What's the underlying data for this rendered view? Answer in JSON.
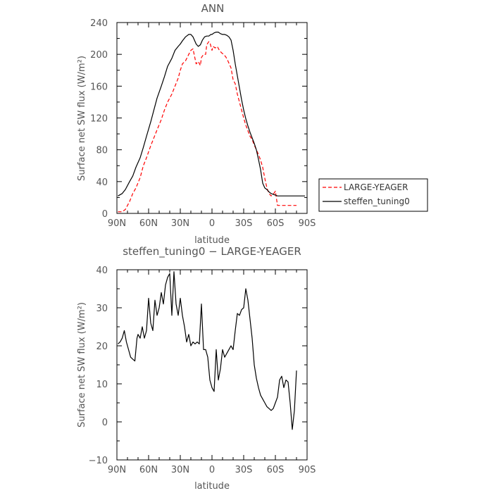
{
  "chart_data": [
    {
      "type": "line",
      "title": "ANN",
      "xlabel": "latitude",
      "ylabel": "Surface net SW flux (W/m²)",
      "xlim": [
        90,
        -90
      ],
      "ylim": [
        0,
        240
      ],
      "xticks": [
        90,
        60,
        30,
        0,
        -30,
        -60,
        -90
      ],
      "xtick_labels": [
        "90N",
        "60N",
        "30N",
        "0",
        "30S",
        "60S",
        "90S"
      ],
      "yticks": [
        0,
        40,
        80,
        120,
        160,
        200,
        240
      ],
      "ytick_labels": [
        "0",
        "40",
        "80",
        "120",
        "160",
        "200",
        "240"
      ],
      "legend_position": "right",
      "series": [
        {
          "name": "LARGE-YEAGER",
          "color": "#ff0000",
          "style": "dashed",
          "x": [
            89,
            85,
            82,
            78,
            75,
            72,
            68,
            65,
            62,
            58,
            55,
            52,
            48,
            45,
            42,
            38,
            35,
            32,
            30,
            28,
            25,
            22,
            20,
            18,
            15,
            13,
            11,
            10,
            8,
            6,
            5,
            3,
            2,
            0,
            -1,
            -3,
            -5,
            -7,
            -9,
            -11,
            -13,
            -15,
            -18,
            -20,
            -22,
            -24,
            -26,
            -28,
            -30,
            -32,
            -34,
            -36,
            -38,
            -40,
            -42,
            -44,
            -46,
            -48,
            -50,
            -52,
            -54,
            -56,
            -58,
            -60,
            -62,
            -64,
            -66,
            -68,
            -70,
            -72,
            -74,
            -76,
            -78,
            -80
          ],
          "y": [
            2,
            2,
            5,
            15,
            25,
            32,
            45,
            60,
            70,
            85,
            95,
            105,
            118,
            130,
            140,
            150,
            160,
            170,
            180,
            188,
            192,
            200,
            205,
            207,
            188,
            191,
            186,
            196,
            200,
            200,
            212,
            216,
            215,
            205,
            210,
            208,
            210,
            205,
            202,
            200,
            197,
            192,
            183,
            168,
            163,
            150,
            140,
            130,
            120,
            111,
            104,
            97,
            93,
            86,
            80,
            74,
            67,
            58,
            44,
            32,
            25,
            22,
            24,
            28,
            10,
            10,
            10,
            10,
            10,
            10,
            10,
            10,
            10,
            10
          ]
        },
        {
          "name": "steffen_tuning0",
          "color": "#000000",
          "style": "solid",
          "x": [
            89,
            85,
            82,
            78,
            75,
            72,
            68,
            65,
            62,
            58,
            55,
            52,
            48,
            45,
            42,
            38,
            35,
            32,
            30,
            28,
            25,
            22,
            20,
            18,
            15,
            13,
            11,
            9,
            7,
            5,
            3,
            1,
            0,
            -2,
            -4,
            -6,
            -8,
            -10,
            -12,
            -14,
            -16,
            -18,
            -20,
            -22,
            -24,
            -26,
            -28,
            -30,
            -32,
            -34,
            -36,
            -38,
            -40,
            -42,
            -44,
            -46,
            -48,
            -50,
            -52,
            -54,
            -56,
            -58,
            -60,
            -62,
            -64,
            -66,
            -68,
            -70,
            -72,
            -74,
            -76,
            -78,
            -80,
            -82,
            -85,
            -88
          ],
          "y": [
            22,
            25,
            30,
            40,
            47,
            58,
            70,
            83,
            97,
            115,
            130,
            145,
            160,
            172,
            185,
            195,
            205,
            210,
            213,
            217,
            222,
            225,
            225,
            222,
            213,
            210,
            212,
            218,
            222,
            223,
            223,
            225,
            225,
            227,
            228,
            228,
            226,
            225,
            225,
            224,
            222,
            218,
            205,
            188,
            173,
            158,
            143,
            130,
            119,
            110,
            102,
            95,
            88,
            80,
            68,
            55,
            38,
            32,
            30,
            27,
            25,
            24,
            23,
            22,
            22,
            22,
            22,
            22,
            22,
            22,
            22,
            22,
            22,
            22,
            22,
            22
          ]
        }
      ]
    },
    {
      "type": "line",
      "title": "steffen_tuning0 − LARGE-YEAGER",
      "xlabel": "latitude",
      "ylabel": "Surface net SW flux (W/m²)",
      "xlim": [
        90,
        -90
      ],
      "ylim": [
        -10,
        40
      ],
      "xticks": [
        90,
        60,
        30,
        0,
        -30,
        -60,
        -90
      ],
      "xtick_labels": [
        "90N",
        "60N",
        "30N",
        "0",
        "30S",
        "60S",
        "90S"
      ],
      "yticks": [
        -10,
        0,
        10,
        20,
        30,
        40
      ],
      "ytick_labels": [
        "−10",
        "0",
        "10",
        "20",
        "30",
        "40"
      ],
      "series": [
        {
          "color": "#000000",
          "style": "solid",
          "x": [
            89,
            87,
            85,
            83,
            81,
            79,
            77,
            75,
            73,
            71,
            70,
            68,
            66,
            64,
            62,
            60,
            58,
            56,
            54,
            52,
            50,
            48,
            46,
            44,
            42,
            40,
            38,
            36,
            34,
            32,
            30,
            28,
            26,
            24,
            22,
            20,
            18,
            16,
            14,
            12,
            10,
            8,
            6,
            4,
            2,
            0,
            -2,
            -4,
            -6,
            -8,
            -10,
            -12,
            -14,
            -16,
            -18,
            -20,
            -22,
            -24,
            -26,
            -28,
            -30,
            -32,
            -34,
            -36,
            -38,
            -40,
            -42,
            -44,
            -46,
            -48,
            -50,
            -52,
            -54,
            -56,
            -58,
            -60,
            -62,
            -64,
            -66,
            -68,
            -70,
            -72,
            -74,
            -76,
            -78,
            -80
          ],
          "y": [
            20.5,
            21,
            22,
            24,
            21,
            19,
            17,
            16.5,
            16,
            22,
            23,
            22,
            25,
            22,
            24,
            32.5,
            26,
            24,
            32,
            28,
            30,
            34,
            31,
            36,
            38,
            39,
            28,
            39.5,
            31,
            28,
            32.5,
            28,
            25,
            21,
            23,
            20,
            21,
            20.5,
            21,
            20.5,
            31,
            19,
            19,
            17,
            11,
            9,
            8,
            19,
            11,
            14,
            19,
            17,
            18,
            19,
            20,
            19,
            24,
            28.5,
            28,
            29.5,
            30,
            35,
            32,
            27,
            22,
            15,
            11.5,
            9,
            7,
            6,
            5,
            4,
            3.5,
            3,
            3.5,
            5,
            6.5,
            11,
            12,
            9,
            11,
            10.5,
            5,
            -2,
            3,
            13.5
          ]
        }
      ]
    }
  ]
}
